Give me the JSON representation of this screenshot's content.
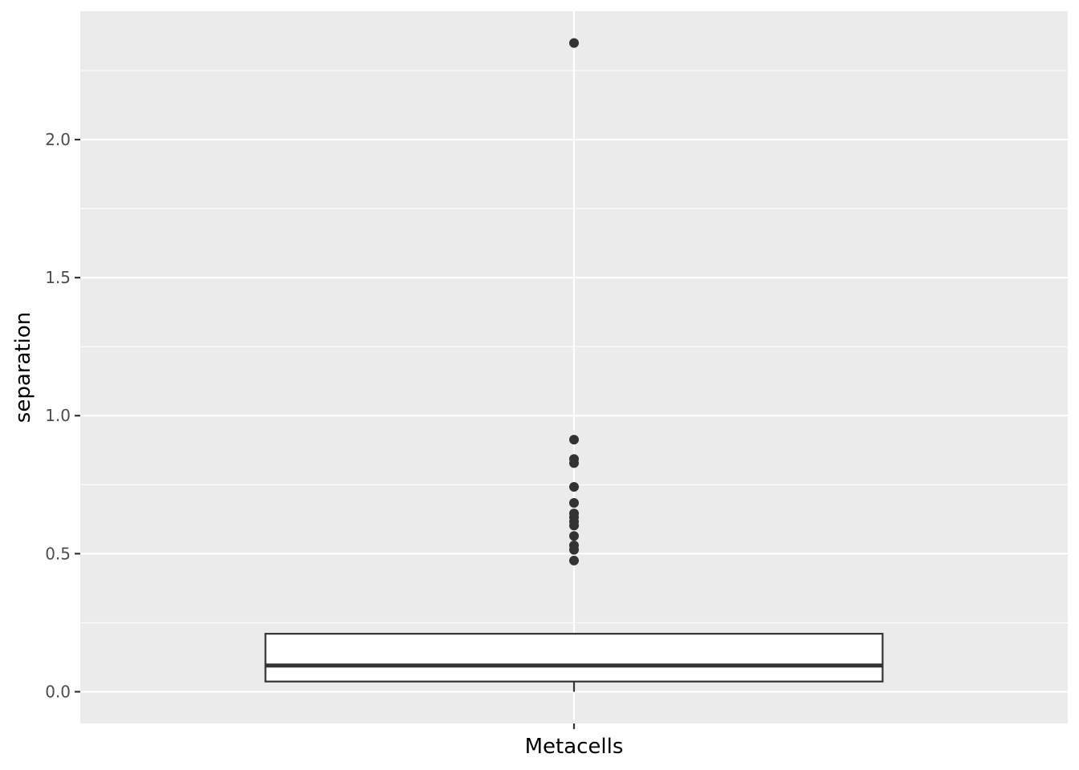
{
  "chart_data": {
    "type": "boxplot",
    "title": "",
    "xlabel": "",
    "ylabel": "separation",
    "categories": [
      "Metacells"
    ],
    "ylim": [
      -0.115,
      2.465
    ],
    "y_ticks": [
      0.0,
      0.5,
      1.0,
      1.5,
      2.0
    ],
    "y_tick_labels": [
      "0.0",
      "0.5",
      "1.0",
      "1.5",
      "2.0"
    ],
    "grid": true,
    "legend": "none",
    "boxes": [
      {
        "category": "Metacells",
        "whisker_low": 0.0,
        "q1": 0.037,
        "median": 0.095,
        "q3": 0.21,
        "whisker_high": 0.21,
        "outliers": [
          2.35,
          0.913,
          0.843,
          0.828,
          0.742,
          0.684,
          0.646,
          0.632,
          0.616,
          0.602,
          0.564,
          0.53,
          0.514,
          0.475
        ]
      }
    ],
    "colors": {
      "panel": "#ebebeb",
      "grid": "#ffffff",
      "box_fill": "#ffffff",
      "box_line": "#333333",
      "tick": "#333333"
    }
  }
}
